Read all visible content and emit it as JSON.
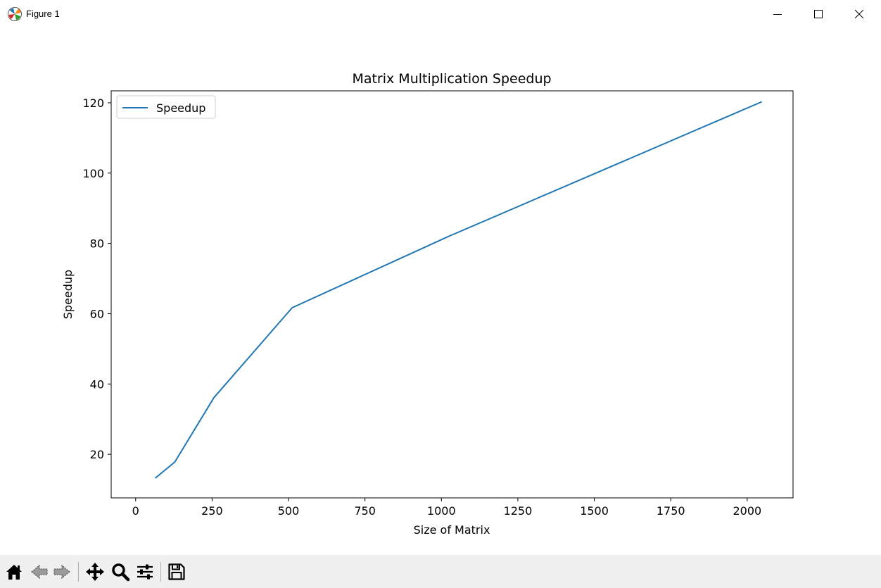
{
  "window": {
    "title": "Figure 1"
  },
  "toolbar": {
    "tools": [
      "home-icon",
      "back-icon",
      "forward-icon",
      "pan-icon",
      "zoom-icon",
      "configure-subplots-icon",
      "save-icon"
    ]
  },
  "colors": {
    "line": "#1f77b4",
    "axes": "#000000",
    "toolbar_bg": "#f0f0f0"
  },
  "chart_data": {
    "type": "line",
    "title": "Matrix Multiplication Speedup",
    "xlabel": "Size of Matrix",
    "ylabel": "Speedup",
    "xlim": [
      -80,
      2150
    ],
    "ylim": [
      7.6,
      123.4
    ],
    "xticks": [
      0,
      250,
      500,
      750,
      1000,
      1250,
      1500,
      1750,
      2000
    ],
    "yticks": [
      20,
      40,
      60,
      80,
      100,
      120
    ],
    "legend": {
      "placement": "upper-left",
      "entries": [
        "Speedup"
      ]
    },
    "grid": false,
    "series": [
      {
        "name": "Speedup",
        "x": [
          64,
          128,
          256,
          512,
          1024,
          2048
        ],
        "y": [
          13.2,
          17.8,
          36.1,
          61.7,
          82.0,
          120.3
        ]
      }
    ]
  }
}
